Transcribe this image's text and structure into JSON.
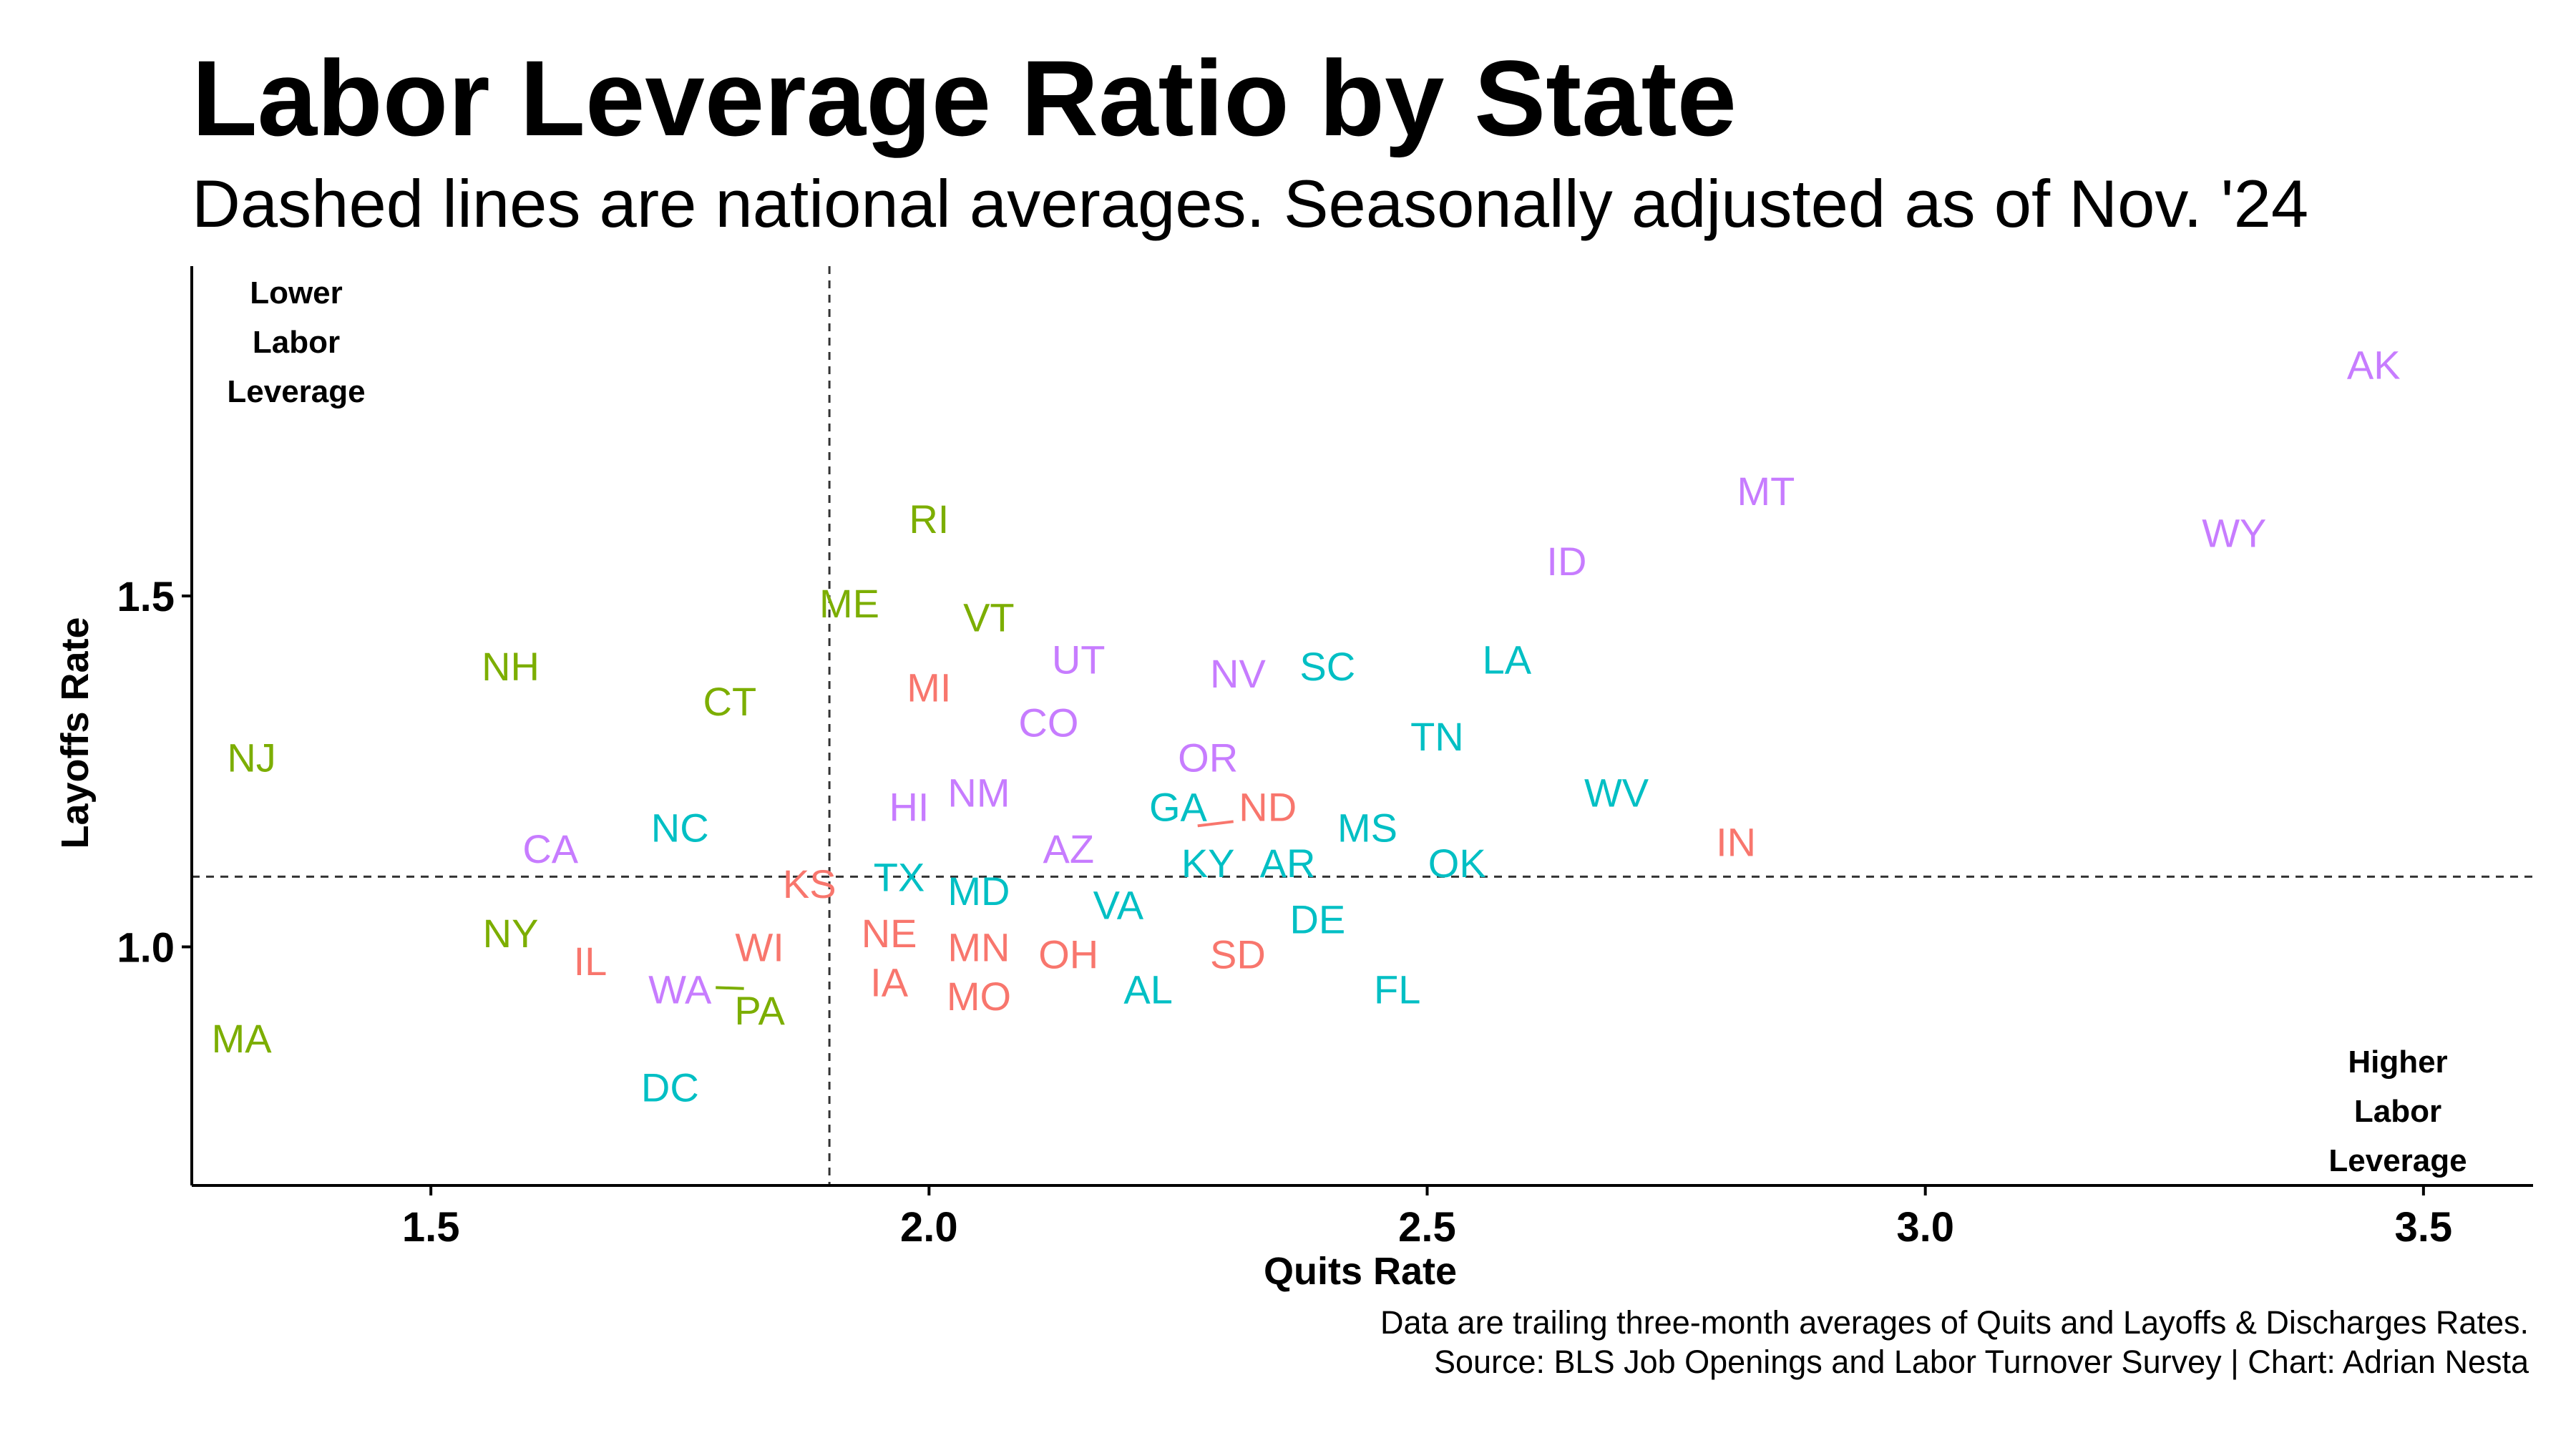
{
  "chart_data": {
    "type": "scatter",
    "title": "Labor Leverage Ratio by State",
    "subtitle": "Dashed lines are national averages. Seasonally adjusted as of Nov. '24",
    "xlabel": "Quits Rate",
    "ylabel": "Layoffs Rate",
    "xlim": [
      1.26,
      3.61
    ],
    "ylim": [
      0.66,
      1.97
    ],
    "xticks": [
      1.5,
      2.0,
      2.5,
      3.0,
      3.5
    ],
    "xtick_labels": [
      "1.5",
      "2.0",
      "2.5",
      "3.0",
      "3.5"
    ],
    "yticks": [
      1.0,
      1.5
    ],
    "ytick_labels": [
      "1.0",
      "1.5"
    ],
    "grid": false,
    "legend": "none",
    "reference_lines": {
      "x": 1.9,
      "y": 1.1,
      "style": "dashed"
    },
    "annotations": {
      "top_left": [
        "Lower",
        "Labor",
        "Leverage"
      ],
      "bottom_right": [
        "Higher",
        "Labor",
        "Leverage"
      ]
    },
    "colors": {
      "green": "#7CAE00",
      "teal": "#00BFC4",
      "red": "#F8766D",
      "purple": "#C77CFF"
    },
    "points": [
      {
        "label": "AK",
        "x": 3.45,
        "y": 1.83,
        "color": "purple"
      },
      {
        "label": "MT",
        "x": 2.84,
        "y": 1.65,
        "color": "purple"
      },
      {
        "label": "WY",
        "x": 3.31,
        "y": 1.59,
        "color": "purple"
      },
      {
        "label": "ID",
        "x": 2.64,
        "y": 1.55,
        "color": "purple"
      },
      {
        "label": "RI",
        "x": 2.0,
        "y": 1.61,
        "color": "green"
      },
      {
        "label": "ME",
        "x": 1.92,
        "y": 1.49,
        "color": "green"
      },
      {
        "label": "VT",
        "x": 2.06,
        "y": 1.47,
        "color": "green"
      },
      {
        "label": "UT",
        "x": 2.15,
        "y": 1.41,
        "color": "purple"
      },
      {
        "label": "NV",
        "x": 2.31,
        "y": 1.39,
        "color": "purple"
      },
      {
        "label": "SC",
        "x": 2.4,
        "y": 1.4,
        "color": "teal"
      },
      {
        "label": "LA",
        "x": 2.58,
        "y": 1.41,
        "color": "teal"
      },
      {
        "label": "NH",
        "x": 1.58,
        "y": 1.4,
        "color": "green"
      },
      {
        "label": "MI",
        "x": 2.0,
        "y": 1.37,
        "color": "red"
      },
      {
        "label": "CT",
        "x": 1.8,
        "y": 1.35,
        "color": "green"
      },
      {
        "label": "CO",
        "x": 2.12,
        "y": 1.32,
        "color": "purple"
      },
      {
        "label": "TN",
        "x": 2.51,
        "y": 1.3,
        "color": "teal"
      },
      {
        "label": "NJ",
        "x": 1.32,
        "y": 1.27,
        "color": "green"
      },
      {
        "label": "OR",
        "x": 2.28,
        "y": 1.27,
        "color": "purple"
      },
      {
        "label": "NM",
        "x": 2.05,
        "y": 1.22,
        "color": "purple"
      },
      {
        "label": "WV",
        "x": 2.69,
        "y": 1.22,
        "color": "teal"
      },
      {
        "label": "HI",
        "x": 1.98,
        "y": 1.2,
        "color": "purple"
      },
      {
        "label": "GA",
        "x": 2.25,
        "y": 1.2,
        "color": "teal"
      },
      {
        "label": "ND",
        "x": 2.34,
        "y": 1.2,
        "color": "red"
      },
      {
        "label": "MS",
        "x": 2.44,
        "y": 1.17,
        "color": "teal"
      },
      {
        "label": "NC",
        "x": 1.75,
        "y": 1.17,
        "color": "teal"
      },
      {
        "label": "IN",
        "x": 2.81,
        "y": 1.15,
        "color": "red"
      },
      {
        "label": "CA",
        "x": 1.62,
        "y": 1.14,
        "color": "purple"
      },
      {
        "label": "AZ",
        "x": 2.14,
        "y": 1.14,
        "color": "purple"
      },
      {
        "label": "KY",
        "x": 2.28,
        "y": 1.12,
        "color": "teal"
      },
      {
        "label": "AR",
        "x": 2.36,
        "y": 1.12,
        "color": "teal"
      },
      {
        "label": "OK",
        "x": 2.53,
        "y": 1.12,
        "color": "teal"
      },
      {
        "label": "TX",
        "x": 1.97,
        "y": 1.1,
        "color": "teal"
      },
      {
        "label": "KS",
        "x": 1.88,
        "y": 1.09,
        "color": "red"
      },
      {
        "label": "MD",
        "x": 2.05,
        "y": 1.08,
        "color": "teal"
      },
      {
        "label": "VA",
        "x": 2.19,
        "y": 1.06,
        "color": "teal"
      },
      {
        "label": "DE",
        "x": 2.39,
        "y": 1.04,
        "color": "teal"
      },
      {
        "label": "NE",
        "x": 1.96,
        "y": 1.02,
        "color": "red"
      },
      {
        "label": "NY",
        "x": 1.58,
        "y": 1.02,
        "color": "green"
      },
      {
        "label": "WI",
        "x": 1.83,
        "y": 1.0,
        "color": "red"
      },
      {
        "label": "MN",
        "x": 2.05,
        "y": 1.0,
        "color": "red"
      },
      {
        "label": "OH",
        "x": 2.14,
        "y": 0.99,
        "color": "red"
      },
      {
        "label": "SD",
        "x": 2.31,
        "y": 0.99,
        "color": "red"
      },
      {
        "label": "IL",
        "x": 1.66,
        "y": 0.98,
        "color": "red"
      },
      {
        "label": "IA",
        "x": 1.96,
        "y": 0.95,
        "color": "red"
      },
      {
        "label": "AL",
        "x": 2.22,
        "y": 0.94,
        "color": "teal"
      },
      {
        "label": "FL",
        "x": 2.47,
        "y": 0.94,
        "color": "teal"
      },
      {
        "label": "WA",
        "x": 1.75,
        "y": 0.94,
        "color": "purple"
      },
      {
        "label": "MO",
        "x": 2.05,
        "y": 0.93,
        "color": "red"
      },
      {
        "label": "PA",
        "x": 1.83,
        "y": 0.91,
        "color": "green"
      },
      {
        "label": "MA",
        "x": 1.31,
        "y": 0.87,
        "color": "green"
      },
      {
        "label": "DC",
        "x": 1.74,
        "y": 0.8,
        "color": "teal"
      }
    ],
    "caption": [
      "Data are trailing three-month averages of Quits and Layoffs & Discharges Rates.",
      "Source: BLS Job Openings and Labor Turnover Survey | Chart: Adrian Nesta"
    ]
  }
}
